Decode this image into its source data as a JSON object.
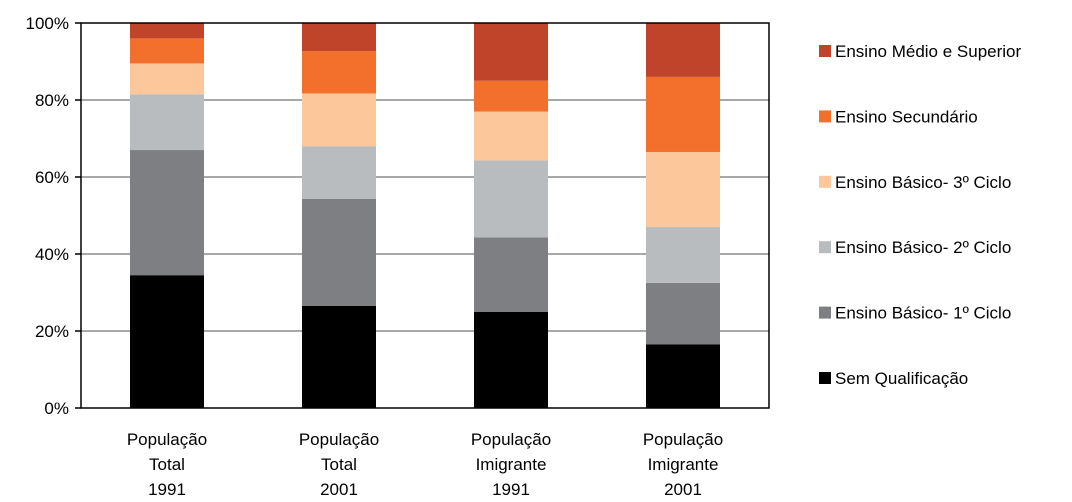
{
  "chart_data": {
    "type": "bar",
    "stacked": true,
    "categories": [
      [
        "População",
        "Total",
        "1991"
      ],
      [
        "População",
        "Total",
        "2001"
      ],
      [
        "População",
        "Imigrante",
        "1991"
      ],
      [
        "População",
        "Imigrante",
        "2001"
      ]
    ],
    "series": [
      {
        "name": "Sem Qualificação",
        "color": "#000000",
        "values": [
          34.5,
          26.5,
          25.0,
          16.5
        ]
      },
      {
        "name": "Ensino Básico- 1º Ciclo",
        "color": "#7d7f82",
        "values": [
          32.5,
          27.8,
          19.3,
          16.0
        ]
      },
      {
        "name": "Ensino Básico- 2º Ciclo",
        "color": "#b9bcbe",
        "values": [
          14.5,
          13.7,
          20.0,
          14.5
        ]
      },
      {
        "name": "Ensino Básico- 3º Ciclo",
        "color": "#fbc79b",
        "values": [
          8.0,
          13.7,
          12.7,
          19.5
        ]
      },
      {
        "name": "Ensino Secundário",
        "color": "#f36f2c",
        "values": [
          6.5,
          11.0,
          8.0,
          19.5
        ]
      },
      {
        "name": "Ensino Médio e Superior",
        "color": "#c0442a",
        "values": [
          4.0,
          7.3,
          15.0,
          14.0
        ]
      }
    ],
    "ylim": [
      0,
      100
    ],
    "yticks": [
      "0%",
      "20%",
      "40%",
      "60%",
      "80%",
      "100%"
    ],
    "ytick_values": [
      0,
      20,
      40,
      60,
      80,
      100
    ],
    "grid": true,
    "legend_position": "right"
  }
}
